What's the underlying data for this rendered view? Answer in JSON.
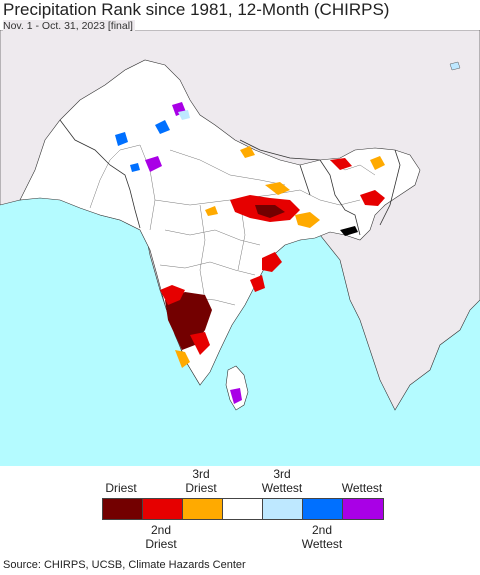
{
  "header": {
    "title": "Precipitation Rank since 1981, 12-Month (CHIRPS)",
    "subtitle": "Nov. 1 - Oct. 31, 2023 [final]"
  },
  "legend": {
    "top_labels": [
      "Driest",
      "3rd\nDriest",
      "3rd\nWettest",
      "Wettest"
    ],
    "bottom_labels": [
      "2nd\nDriest",
      "2nd\nWettest"
    ],
    "categories": [
      {
        "label": "Driest",
        "color": "#730000"
      },
      {
        "label": "2nd Driest",
        "color": "#e60000"
      },
      {
        "label": "3rd Driest",
        "color": "#ffaa00"
      },
      {
        "label": "Normal",
        "color": "#ffffff"
      },
      {
        "label": "3rd Wettest",
        "color": "#bee8ff"
      },
      {
        "label": "2nd Wettest",
        "color": "#0070ff"
      },
      {
        "label": "Wettest",
        "color": "#a900e6"
      }
    ]
  },
  "colors": {
    "ocean": "#b4fbff",
    "land_outside": "#eeeaee",
    "land_inside": "#ffffff",
    "border": "#333333"
  },
  "source": "Source: CHIRPS, UCSB, Climate Hazards Center"
}
